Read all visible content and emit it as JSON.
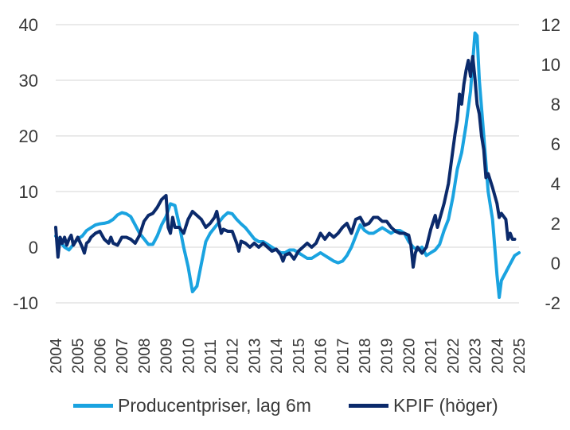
{
  "chart_data": {
    "type": "line",
    "title": "",
    "xlabel": "",
    "ylabel_left": "",
    "ylabel_right": "",
    "x_range": [
      2004.0,
      2025.0
    ],
    "x_ticks": [
      "2004",
      "2005",
      "2006",
      "2007",
      "2008",
      "2009",
      "2010",
      "2011",
      "2012",
      "2013",
      "2014",
      "2015",
      "2016",
      "2017",
      "2018",
      "2019",
      "2020",
      "2021",
      "2022",
      "2023",
      "2024",
      "2025"
    ],
    "y_left": {
      "range": [
        -10,
        40
      ],
      "ticks": [
        "-10",
        "0",
        "10",
        "20",
        "30",
        "40"
      ]
    },
    "y_right": {
      "range": [
        -2,
        12
      ],
      "ticks": [
        "-2",
        "0",
        "2",
        "4",
        "6",
        "8",
        "10",
        "12"
      ]
    },
    "grid": true,
    "legend_position": "bottom",
    "series": [
      {
        "name": "Producentpriser, lag 6m",
        "axis": "left",
        "color": "#1aa3e0",
        "points": [
          [
            2004.0,
            2
          ],
          [
            2004.2,
            1
          ],
          [
            2004.4,
            0
          ],
          [
            2004.6,
            -0.5
          ],
          [
            2004.8,
            0.5
          ],
          [
            2005.0,
            1.5
          ],
          [
            2005.2,
            2
          ],
          [
            2005.4,
            3
          ],
          [
            2005.6,
            3.5
          ],
          [
            2005.8,
            4
          ],
          [
            2006.0,
            4.2
          ],
          [
            2006.2,
            4.3
          ],
          [
            2006.4,
            4.5
          ],
          [
            2006.6,
            5
          ],
          [
            2006.8,
            5.8
          ],
          [
            2007.0,
            6.2
          ],
          [
            2007.2,
            6
          ],
          [
            2007.4,
            5.5
          ],
          [
            2007.6,
            4
          ],
          [
            2007.8,
            2.5
          ],
          [
            2008.0,
            1.5
          ],
          [
            2008.2,
            0.5
          ],
          [
            2008.4,
            0.5
          ],
          [
            2008.6,
            2
          ],
          [
            2008.8,
            4
          ],
          [
            2009.0,
            5.5
          ],
          [
            2009.2,
            7.8
          ],
          [
            2009.4,
            7.5
          ],
          [
            2009.6,
            4
          ],
          [
            2009.8,
            0
          ],
          [
            2010.0,
            -3.5
          ],
          [
            2010.2,
            -8
          ],
          [
            2010.4,
            -7
          ],
          [
            2010.6,
            -3
          ],
          [
            2010.8,
            1
          ],
          [
            2011.0,
            2.5
          ],
          [
            2011.2,
            3.5
          ],
          [
            2011.4,
            4.5
          ],
          [
            2011.6,
            5.5
          ],
          [
            2011.8,
            6.2
          ],
          [
            2012.0,
            6
          ],
          [
            2012.2,
            5
          ],
          [
            2012.4,
            4.2
          ],
          [
            2012.6,
            3.5
          ],
          [
            2012.8,
            2.5
          ],
          [
            2013.0,
            1.5
          ],
          [
            2013.2,
            1
          ],
          [
            2013.4,
            1
          ],
          [
            2013.6,
            0.5
          ],
          [
            2013.8,
            0
          ],
          [
            2014.0,
            -0.5
          ],
          [
            2014.2,
            -1
          ],
          [
            2014.4,
            -1
          ],
          [
            2014.6,
            -0.5
          ],
          [
            2014.8,
            -0.5
          ],
          [
            2015.0,
            -1
          ],
          [
            2015.2,
            -1.5
          ],
          [
            2015.4,
            -2
          ],
          [
            2015.6,
            -2
          ],
          [
            2015.8,
            -1.5
          ],
          [
            2016.0,
            -1
          ],
          [
            2016.2,
            -1.5
          ],
          [
            2016.4,
            -2
          ],
          [
            2016.6,
            -2.5
          ],
          [
            2016.8,
            -2.8
          ],
          [
            2017.0,
            -2.5
          ],
          [
            2017.2,
            -1.5
          ],
          [
            2017.4,
            0
          ],
          [
            2017.6,
            2
          ],
          [
            2017.8,
            4
          ],
          [
            2018.0,
            3
          ],
          [
            2018.2,
            2.5
          ],
          [
            2018.4,
            2.5
          ],
          [
            2018.6,
            3
          ],
          [
            2018.8,
            3.5
          ],
          [
            2019.0,
            3
          ],
          [
            2019.2,
            2.5
          ],
          [
            2019.4,
            3
          ],
          [
            2019.6,
            3
          ],
          [
            2019.8,
            2.5
          ],
          [
            2020.0,
            1
          ],
          [
            2020.2,
            0
          ],
          [
            2020.4,
            -0.5
          ],
          [
            2020.6,
            0
          ],
          [
            2020.8,
            -1.5
          ],
          [
            2021.0,
            -1
          ],
          [
            2021.2,
            -0.5
          ],
          [
            2021.4,
            0.5
          ],
          [
            2021.6,
            3
          ],
          [
            2021.8,
            5
          ],
          [
            2022.0,
            9
          ],
          [
            2022.2,
            14
          ],
          [
            2022.4,
            17
          ],
          [
            2022.6,
            22
          ],
          [
            2022.8,
            28
          ],
          [
            2023.0,
            38.5
          ],
          [
            2023.1,
            38
          ],
          [
            2023.2,
            30
          ],
          [
            2023.4,
            20
          ],
          [
            2023.6,
            10
          ],
          [
            2023.8,
            5
          ],
          [
            2024.0,
            -5
          ],
          [
            2024.1,
            -9
          ],
          [
            2024.2,
            -6
          ],
          [
            2024.4,
            -4.5
          ],
          [
            2024.6,
            -3
          ],
          [
            2024.8,
            -1.5
          ],
          [
            2025.0,
            -1
          ]
        ]
      },
      {
        "name": "KPIF (höger)",
        "axis": "right",
        "color": "#0b2a6b",
        "points": [
          [
            2004.0,
            1.8
          ],
          [
            2004.1,
            0.3
          ],
          [
            2004.2,
            1.3
          ],
          [
            2004.3,
            1.0
          ],
          [
            2004.4,
            1.3
          ],
          [
            2004.5,
            0.9
          ],
          [
            2004.6,
            1.2
          ],
          [
            2004.7,
            1.4
          ],
          [
            2004.8,
            0.9
          ],
          [
            2005.0,
            1.3
          ],
          [
            2005.2,
            0.8
          ],
          [
            2005.3,
            0.5
          ],
          [
            2005.4,
            1.0
          ],
          [
            2005.5,
            1.1
          ],
          [
            2005.6,
            1.3
          ],
          [
            2005.8,
            1.5
          ],
          [
            2006.0,
            1.6
          ],
          [
            2006.2,
            1.2
          ],
          [
            2006.4,
            1.0
          ],
          [
            2006.5,
            1.3
          ],
          [
            2006.6,
            1.0
          ],
          [
            2006.8,
            0.9
          ],
          [
            2007.0,
            1.3
          ],
          [
            2007.2,
            1.3
          ],
          [
            2007.4,
            1.2
          ],
          [
            2007.6,
            1.0
          ],
          [
            2007.8,
            1.4
          ],
          [
            2008.0,
            2.1
          ],
          [
            2008.2,
            2.4
          ],
          [
            2008.4,
            2.5
          ],
          [
            2008.6,
            2.8
          ],
          [
            2008.8,
            3.2
          ],
          [
            2009.0,
            3.4
          ],
          [
            2009.1,
            1.8
          ],
          [
            2009.2,
            1.5
          ],
          [
            2009.3,
            2.3
          ],
          [
            2009.4,
            1.8
          ],
          [
            2009.6,
            1.8
          ],
          [
            2009.8,
            1.5
          ],
          [
            2010.0,
            2.2
          ],
          [
            2010.2,
            2.6
          ],
          [
            2010.4,
            2.4
          ],
          [
            2010.6,
            2.2
          ],
          [
            2010.8,
            1.8
          ],
          [
            2011.0,
            2.0
          ],
          [
            2011.2,
            2.3
          ],
          [
            2011.3,
            2.6
          ],
          [
            2011.4,
            2.0
          ],
          [
            2011.5,
            1.5
          ],
          [
            2011.6,
            1.7
          ],
          [
            2011.8,
            1.6
          ],
          [
            2012.0,
            1.6
          ],
          [
            2012.2,
            1.0
          ],
          [
            2012.3,
            0.6
          ],
          [
            2012.4,
            1.1
          ],
          [
            2012.6,
            1.0
          ],
          [
            2012.8,
            0.8
          ],
          [
            2013.0,
            1.0
          ],
          [
            2013.2,
            0.8
          ],
          [
            2013.4,
            1.0
          ],
          [
            2013.6,
            0.8
          ],
          [
            2013.8,
            0.6
          ],
          [
            2014.0,
            0.7
          ],
          [
            2014.2,
            0.4
          ],
          [
            2014.3,
            0.1
          ],
          [
            2014.4,
            0.4
          ],
          [
            2014.6,
            0.5
          ],
          [
            2014.8,
            0.2
          ],
          [
            2015.0,
            0.6
          ],
          [
            2015.2,
            0.8
          ],
          [
            2015.4,
            1.0
          ],
          [
            2015.6,
            0.8
          ],
          [
            2015.8,
            1.0
          ],
          [
            2016.0,
            1.5
          ],
          [
            2016.2,
            1.2
          ],
          [
            2016.4,
            1.5
          ],
          [
            2016.6,
            1.3
          ],
          [
            2016.8,
            1.5
          ],
          [
            2017.0,
            1.8
          ],
          [
            2017.2,
            2.0
          ],
          [
            2017.4,
            1.5
          ],
          [
            2017.6,
            2.2
          ],
          [
            2017.8,
            2.3
          ],
          [
            2018.0,
            1.9
          ],
          [
            2018.2,
            2.0
          ],
          [
            2018.4,
            2.3
          ],
          [
            2018.6,
            2.3
          ],
          [
            2018.8,
            2.1
          ],
          [
            2019.0,
            2.1
          ],
          [
            2019.2,
            1.8
          ],
          [
            2019.4,
            1.6
          ],
          [
            2019.6,
            1.5
          ],
          [
            2019.8,
            1.5
          ],
          [
            2020.0,
            1.4
          ],
          [
            2020.1,
            0.9
          ],
          [
            2020.2,
            -0.2
          ],
          [
            2020.3,
            0.5
          ],
          [
            2020.4,
            0.8
          ],
          [
            2020.6,
            0.5
          ],
          [
            2020.8,
            0.8
          ],
          [
            2021.0,
            1.7
          ],
          [
            2021.2,
            2.4
          ],
          [
            2021.3,
            1.8
          ],
          [
            2021.4,
            2.2
          ],
          [
            2021.6,
            3.0
          ],
          [
            2021.8,
            4.0
          ],
          [
            2022.0,
            5.7
          ],
          [
            2022.1,
            6.5
          ],
          [
            2022.2,
            7.2
          ],
          [
            2022.3,
            8.5
          ],
          [
            2022.4,
            8.0
          ],
          [
            2022.5,
            9.0
          ],
          [
            2022.6,
            9.7
          ],
          [
            2022.7,
            10.2
          ],
          [
            2022.8,
            9.4
          ],
          [
            2022.9,
            10.4
          ],
          [
            2023.0,
            9.3
          ],
          [
            2023.1,
            8.0
          ],
          [
            2023.2,
            7.5
          ],
          [
            2023.3,
            6.4
          ],
          [
            2023.4,
            5.7
          ],
          [
            2023.5,
            4.3
          ],
          [
            2023.6,
            4.5
          ],
          [
            2023.8,
            3.8
          ],
          [
            2024.0,
            3.0
          ],
          [
            2024.1,
            2.3
          ],
          [
            2024.2,
            2.5
          ],
          [
            2024.4,
            2.2
          ],
          [
            2024.5,
            1.2
          ],
          [
            2024.6,
            1.5
          ],
          [
            2024.7,
            1.2
          ],
          [
            2024.8,
            1.2
          ]
        ]
      }
    ]
  }
}
